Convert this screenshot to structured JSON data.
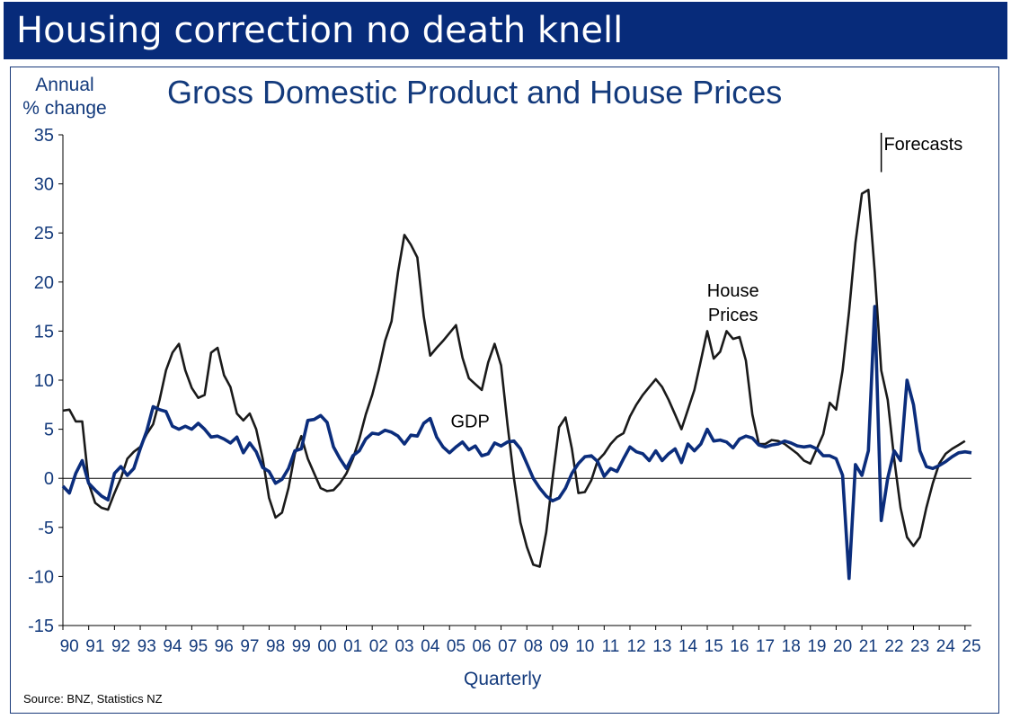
{
  "banner": {
    "title": "Housing correction no death knell"
  },
  "footer": {
    "source": "Source: BNZ, Statistics NZ"
  },
  "colors": {
    "banner": "#072b7a",
    "gdp": "#0b2d7c",
    "house": "#1a1a1a",
    "text": "#133a7c"
  },
  "chart_data": {
    "type": "line",
    "title": "Gross Domestic Product and House Prices",
    "ylabel": "Annual\n% change",
    "xlabel": "Quarterly",
    "ylim": [
      -15,
      35
    ],
    "yticks": [
      -15,
      -10,
      -5,
      0,
      5,
      10,
      15,
      20,
      25,
      30,
      35
    ],
    "xlim": [
      1990,
      2025.25
    ],
    "xtick_labels": [
      "90",
      "91",
      "92",
      "93",
      "94",
      "95",
      "96",
      "97",
      "98",
      "99",
      "00",
      "01",
      "02",
      "03",
      "04",
      "05",
      "06",
      "07",
      "08",
      "09",
      "10",
      "11",
      "12",
      "13",
      "14",
      "15",
      "16",
      "17",
      "18",
      "19",
      "20",
      "21",
      "22",
      "23",
      "24",
      "25"
    ],
    "grid": false,
    "zero_line": true,
    "annotations": [
      {
        "text": "House Prices",
        "x": 2016.0,
        "y": 18.5,
        "series": "House Prices"
      },
      {
        "text": "GDP",
        "x": 2005.8,
        "y": 5.2,
        "series": "GDP"
      },
      {
        "text": "Forecasts",
        "x": 2021.5,
        "y": 34.0
      }
    ],
    "forecast_start": 2021.75,
    "series": [
      {
        "name": "House Prices",
        "points": [
          [
            1990.0,
            6.9
          ],
          [
            1990.25,
            7.0
          ],
          [
            1990.5,
            5.8
          ],
          [
            1990.75,
            5.8
          ],
          [
            1991.0,
            -0.5
          ],
          [
            1991.25,
            -2.5
          ],
          [
            1991.5,
            -3.0
          ],
          [
            1991.75,
            -3.2
          ],
          [
            1992.0,
            -1.5
          ],
          [
            1992.25,
            0.0
          ],
          [
            1992.5,
            2.0
          ],
          [
            1992.75,
            2.7
          ],
          [
            1993.0,
            3.2
          ],
          [
            1993.25,
            4.5
          ],
          [
            1993.5,
            5.5
          ],
          [
            1993.75,
            8.0
          ],
          [
            1994.0,
            11.0
          ],
          [
            1994.25,
            12.8
          ],
          [
            1994.5,
            13.7
          ],
          [
            1994.75,
            11.0
          ],
          [
            1995.0,
            9.2
          ],
          [
            1995.25,
            8.2
          ],
          [
            1995.5,
            8.5
          ],
          [
            1995.75,
            12.8
          ],
          [
            1996.0,
            13.3
          ],
          [
            1996.25,
            10.5
          ],
          [
            1996.5,
            9.3
          ],
          [
            1996.75,
            6.6
          ],
          [
            1997.0,
            5.9
          ],
          [
            1997.25,
            6.6
          ],
          [
            1997.5,
            5.0
          ],
          [
            1997.75,
            2.0
          ],
          [
            1998.0,
            -2.0
          ],
          [
            1998.25,
            -4.0
          ],
          [
            1998.5,
            -3.5
          ],
          [
            1998.75,
            -1.0
          ],
          [
            1999.0,
            2.5
          ],
          [
            1999.25,
            4.3
          ],
          [
            1999.5,
            2.0
          ],
          [
            1999.75,
            0.5
          ],
          [
            2000.0,
            -1.0
          ],
          [
            2000.25,
            -1.3
          ],
          [
            2000.5,
            -1.2
          ],
          [
            2000.75,
            -0.5
          ],
          [
            2001.0,
            0.5
          ],
          [
            2001.25,
            2.0
          ],
          [
            2001.5,
            4.0
          ],
          [
            2001.75,
            6.5
          ],
          [
            2002.0,
            8.5
          ],
          [
            2002.25,
            11.0
          ],
          [
            2002.5,
            14.0
          ],
          [
            2002.75,
            16.0
          ],
          [
            2003.0,
            21.0
          ],
          [
            2003.25,
            24.8
          ],
          [
            2003.5,
            23.8
          ],
          [
            2003.75,
            22.5
          ],
          [
            2004.0,
            16.5
          ],
          [
            2004.25,
            12.5
          ],
          [
            2004.5,
            13.3
          ],
          [
            2004.75,
            14.0
          ],
          [
            2005.0,
            14.8
          ],
          [
            2005.25,
            15.6
          ],
          [
            2005.5,
            12.3
          ],
          [
            2005.75,
            10.2
          ],
          [
            2006.0,
            9.6
          ],
          [
            2006.25,
            9.0
          ],
          [
            2006.5,
            11.8
          ],
          [
            2006.75,
            13.7
          ],
          [
            2007.0,
            11.5
          ],
          [
            2007.25,
            5.5
          ],
          [
            2007.5,
            0.0
          ],
          [
            2007.75,
            -4.5
          ],
          [
            2008.0,
            -7.0
          ],
          [
            2008.25,
            -8.8
          ],
          [
            2008.5,
            -9.0
          ],
          [
            2008.75,
            -5.5
          ],
          [
            2009.0,
            0.0
          ],
          [
            2009.25,
            5.2
          ],
          [
            2009.5,
            6.2
          ],
          [
            2009.75,
            3.0
          ],
          [
            2010.0,
            -1.5
          ],
          [
            2010.25,
            -1.4
          ],
          [
            2010.5,
            -0.2
          ],
          [
            2010.75,
            1.8
          ],
          [
            2011.0,
            2.5
          ],
          [
            2011.25,
            3.5
          ],
          [
            2011.5,
            4.2
          ],
          [
            2011.75,
            4.6
          ],
          [
            2012.0,
            6.3
          ],
          [
            2012.25,
            7.5
          ],
          [
            2012.5,
            8.5
          ],
          [
            2012.75,
            9.3
          ],
          [
            2013.0,
            10.1
          ],
          [
            2013.25,
            9.3
          ],
          [
            2013.5,
            8.0
          ],
          [
            2013.75,
            6.5
          ],
          [
            2014.0,
            5.0
          ],
          [
            2014.25,
            7.0
          ],
          [
            2014.5,
            9.0
          ],
          [
            2014.75,
            12.0
          ],
          [
            2015.0,
            15.0
          ],
          [
            2015.25,
            12.2
          ],
          [
            2015.5,
            12.9
          ],
          [
            2015.75,
            15.0
          ],
          [
            2016.0,
            14.2
          ],
          [
            2016.25,
            14.4
          ],
          [
            2016.5,
            12.0
          ],
          [
            2016.75,
            6.5
          ],
          [
            2017.0,
            3.5
          ],
          [
            2017.25,
            3.5
          ],
          [
            2017.5,
            3.9
          ],
          [
            2017.75,
            3.8
          ],
          [
            2018.0,
            3.5
          ],
          [
            2018.25,
            3.0
          ],
          [
            2018.5,
            2.5
          ],
          [
            2018.75,
            1.8
          ],
          [
            2019.0,
            1.5
          ],
          [
            2019.25,
            3.0
          ],
          [
            2019.5,
            4.5
          ],
          [
            2019.75,
            7.7
          ],
          [
            2020.0,
            7.0
          ],
          [
            2020.25,
            11.0
          ],
          [
            2020.5,
            17.0
          ],
          [
            2020.75,
            24.0
          ],
          [
            2021.0,
            29.0
          ],
          [
            2021.25,
            29.4
          ],
          [
            2021.5,
            21.0
          ],
          [
            2021.75,
            11.0
          ],
          [
            2022.0,
            8.0
          ],
          [
            2022.25,
            2.0
          ],
          [
            2022.5,
            -3.0
          ],
          [
            2022.75,
            -6.0
          ],
          [
            2023.0,
            -6.9
          ],
          [
            2023.25,
            -6.0
          ],
          [
            2023.5,
            -3.0
          ],
          [
            2023.75,
            -0.5
          ],
          [
            2024.0,
            1.5
          ],
          [
            2024.25,
            2.5
          ],
          [
            2024.5,
            3.0
          ],
          [
            2024.75,
            3.4
          ],
          [
            2025.0,
            3.8
          ]
        ]
      },
      {
        "name": "GDP",
        "points": [
          [
            1990.0,
            -0.8
          ],
          [
            1990.25,
            -1.5
          ],
          [
            1990.5,
            0.5
          ],
          [
            1990.75,
            1.8
          ],
          [
            1991.0,
            -0.5
          ],
          [
            1991.25,
            -1.2
          ],
          [
            1991.5,
            -1.8
          ],
          [
            1991.75,
            -2.2
          ],
          [
            1992.0,
            0.5
          ],
          [
            1992.25,
            1.2
          ],
          [
            1992.5,
            0.3
          ],
          [
            1992.75,
            1.0
          ],
          [
            1993.0,
            3.0
          ],
          [
            1993.25,
            4.8
          ],
          [
            1993.5,
            7.3
          ],
          [
            1993.75,
            7.0
          ],
          [
            1994.0,
            6.8
          ],
          [
            1994.25,
            5.3
          ],
          [
            1994.5,
            5.0
          ],
          [
            1994.75,
            5.3
          ],
          [
            1995.0,
            5.0
          ],
          [
            1995.25,
            5.6
          ],
          [
            1995.5,
            5.0
          ],
          [
            1995.75,
            4.2
          ],
          [
            1996.0,
            4.3
          ],
          [
            1996.25,
            4.0
          ],
          [
            1996.5,
            3.6
          ],
          [
            1996.75,
            4.2
          ],
          [
            1997.0,
            2.6
          ],
          [
            1997.25,
            3.6
          ],
          [
            1997.5,
            2.7
          ],
          [
            1997.75,
            1.1
          ],
          [
            1998.0,
            0.7
          ],
          [
            1998.25,
            -0.5
          ],
          [
            1998.5,
            -0.1
          ],
          [
            1998.75,
            1.0
          ],
          [
            1999.0,
            2.8
          ],
          [
            1999.25,
            3.0
          ],
          [
            1999.5,
            5.9
          ],
          [
            1999.75,
            6.0
          ],
          [
            2000.0,
            6.4
          ],
          [
            2000.25,
            5.7
          ],
          [
            2000.5,
            3.2
          ],
          [
            2000.75,
            2.0
          ],
          [
            2001.0,
            1.0
          ],
          [
            2001.25,
            2.3
          ],
          [
            2001.5,
            2.8
          ],
          [
            2001.75,
            4.0
          ],
          [
            2002.0,
            4.6
          ],
          [
            2002.25,
            4.5
          ],
          [
            2002.5,
            4.9
          ],
          [
            2002.75,
            4.7
          ],
          [
            2003.0,
            4.3
          ],
          [
            2003.25,
            3.5
          ],
          [
            2003.5,
            4.4
          ],
          [
            2003.75,
            4.3
          ],
          [
            2004.0,
            5.6
          ],
          [
            2004.25,
            6.1
          ],
          [
            2004.5,
            4.2
          ],
          [
            2004.75,
            3.2
          ],
          [
            2005.0,
            2.6
          ],
          [
            2005.25,
            3.2
          ],
          [
            2005.5,
            3.7
          ],
          [
            2005.75,
            2.9
          ],
          [
            2006.0,
            3.3
          ],
          [
            2006.25,
            2.3
          ],
          [
            2006.5,
            2.5
          ],
          [
            2006.75,
            3.6
          ],
          [
            2007.0,
            3.3
          ],
          [
            2007.25,
            3.7
          ],
          [
            2007.5,
            3.8
          ],
          [
            2007.75,
            3.0
          ],
          [
            2008.0,
            1.5
          ],
          [
            2008.25,
            0.0
          ],
          [
            2008.5,
            -1.0
          ],
          [
            2008.75,
            -1.8
          ],
          [
            2009.0,
            -2.3
          ],
          [
            2009.25,
            -2.0
          ],
          [
            2009.5,
            -1.0
          ],
          [
            2009.75,
            0.5
          ],
          [
            2010.0,
            1.5
          ],
          [
            2010.25,
            2.2
          ],
          [
            2010.5,
            2.3
          ],
          [
            2010.75,
            1.7
          ],
          [
            2011.0,
            0.2
          ],
          [
            2011.25,
            1.0
          ],
          [
            2011.5,
            0.7
          ],
          [
            2011.75,
            2.0
          ],
          [
            2012.0,
            3.2
          ],
          [
            2012.25,
            2.7
          ],
          [
            2012.5,
            2.5
          ],
          [
            2012.75,
            1.8
          ],
          [
            2013.0,
            2.8
          ],
          [
            2013.25,
            1.8
          ],
          [
            2013.5,
            2.5
          ],
          [
            2013.75,
            3.0
          ],
          [
            2014.0,
            1.6
          ],
          [
            2014.25,
            3.5
          ],
          [
            2014.5,
            2.8
          ],
          [
            2014.75,
            3.5
          ],
          [
            2015.0,
            5.0
          ],
          [
            2015.25,
            3.8
          ],
          [
            2015.5,
            3.9
          ],
          [
            2015.75,
            3.7
          ],
          [
            2016.0,
            3.1
          ],
          [
            2016.25,
            4.0
          ],
          [
            2016.5,
            4.3
          ],
          [
            2016.75,
            4.1
          ],
          [
            2017.0,
            3.4
          ],
          [
            2017.25,
            3.2
          ],
          [
            2017.5,
            3.4
          ],
          [
            2017.75,
            3.5
          ],
          [
            2018.0,
            3.8
          ],
          [
            2018.25,
            3.6
          ],
          [
            2018.5,
            3.3
          ],
          [
            2018.75,
            3.2
          ],
          [
            2019.0,
            3.3
          ],
          [
            2019.25,
            3.0
          ],
          [
            2019.5,
            2.3
          ],
          [
            2019.75,
            2.3
          ],
          [
            2020.0,
            2.0
          ],
          [
            2020.25,
            0.3
          ],
          [
            2020.5,
            -10.2
          ],
          [
            2020.75,
            1.4
          ],
          [
            2021.0,
            0.3
          ],
          [
            2021.25,
            2.8
          ],
          [
            2021.5,
            17.5
          ],
          [
            2021.75,
            -4.3
          ],
          [
            2022.0,
            0.0
          ],
          [
            2022.25,
            2.8
          ],
          [
            2022.5,
            1.8
          ],
          [
            2022.75,
            10.0
          ],
          [
            2023.0,
            7.5
          ],
          [
            2023.25,
            2.8
          ],
          [
            2023.5,
            1.2
          ],
          [
            2023.75,
            1.0
          ],
          [
            2024.0,
            1.3
          ],
          [
            2024.25,
            1.7
          ],
          [
            2024.5,
            2.2
          ],
          [
            2024.75,
            2.6
          ],
          [
            2025.0,
            2.7
          ],
          [
            2025.25,
            2.6
          ]
        ]
      }
    ]
  }
}
